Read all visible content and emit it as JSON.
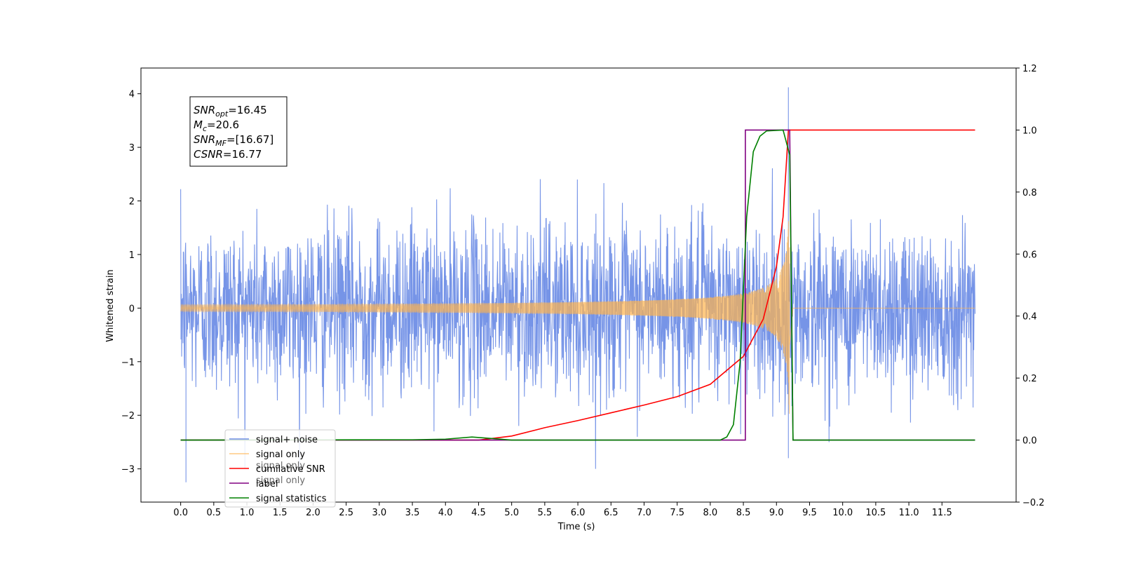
{
  "chart_data": {
    "type": "line",
    "title": "",
    "xlabel": "Time (s)",
    "ylabel": "Whitened strain",
    "y2label": "",
    "xlim": [
      -0.6,
      12.62
    ],
    "ylim": [
      -3.62,
      4.48
    ],
    "y2lim": [
      -0.2,
      1.2
    ],
    "xticks": [
      0.0,
      0.5,
      1.0,
      1.5,
      2.0,
      2.5,
      3.0,
      3.5,
      4.0,
      4.5,
      5.0,
      5.5,
      6.0,
      6.5,
      7.0,
      7.5,
      8.0,
      8.5,
      9.0,
      9.5,
      10.0,
      10.5,
      11.0,
      11.5
    ],
    "xtick_labels": [
      "0.0",
      "0.5",
      "1.0",
      "1.5",
      "2.0",
      "2.5",
      "3.0",
      "3.5",
      "4.0",
      "4.5",
      "5.0",
      "5.5",
      "6.0",
      "6.5",
      "7.0",
      "7.5",
      "8.0",
      "8.5",
      "9.0",
      "9.5",
      "10.0",
      "10.5",
      "11.0",
      "11.5"
    ],
    "yticks": [
      -3,
      -2,
      -1,
      0,
      1,
      2,
      3,
      4
    ],
    "ytick_labels": [
      "−3",
      "−2",
      "−1",
      "0",
      "1",
      "2",
      "3",
      "4"
    ],
    "y2ticks": [
      -0.2,
      0.0,
      0.2,
      0.4,
      0.6,
      0.8,
      1.0,
      1.2
    ],
    "y2tick_labels": [
      "−0.2",
      "0.0",
      "0.2",
      "0.4",
      "0.6",
      "0.8",
      "1.0",
      "1.2"
    ],
    "grid": false,
    "legend_position": "lower-left",
    "series": [
      {
        "name": "signal+ noise",
        "axis": "left",
        "color": "#6f8ee6",
        "kind": "noise",
        "x_range": [
          0,
          12.0
        ],
        "sample_count": 2400,
        "std": 0.8,
        "peak_x": 9.18,
        "peak_y": 4.12,
        "min_y": -3.25
      },
      {
        "name": "signal only",
        "axis": "left",
        "color": "#ffb44d",
        "kind": "chirp",
        "x_range": [
          0,
          12.0
        ],
        "merger_x": 9.2,
        "peak_amplitude": 2.4
      },
      {
        "name": "cumilative SNR",
        "axis": "right",
        "color": "#ff0000",
        "kind": "cumulative",
        "points": [
          [
            0,
            0.0
          ],
          [
            4.5,
            0.0
          ],
          [
            5.0,
            0.013
          ],
          [
            5.5,
            0.04
          ],
          [
            6.0,
            0.063
          ],
          [
            6.5,
            0.088
          ],
          [
            7.0,
            0.113
          ],
          [
            7.5,
            0.14
          ],
          [
            8.0,
            0.18
          ],
          [
            8.5,
            0.27
          ],
          [
            8.8,
            0.39
          ],
          [
            9.0,
            0.56
          ],
          [
            9.1,
            0.72
          ],
          [
            9.18,
            1.0
          ],
          [
            12.0,
            1.0
          ]
        ]
      },
      {
        "name": "label",
        "axis": "right",
        "color": "#800080",
        "kind": "step",
        "points": [
          [
            0,
            0.0
          ],
          [
            8.53,
            0.0
          ],
          [
            8.53,
            1.0
          ],
          [
            9.2,
            1.0
          ],
          [
            9.25,
            0.0
          ],
          [
            12.0,
            0.0
          ]
        ]
      },
      {
        "name": "signal statistics",
        "axis": "right",
        "color": "#008000",
        "kind": "curve",
        "points": [
          [
            0,
            0.0
          ],
          [
            3.5,
            0.001
          ],
          [
            4.0,
            0.003
          ],
          [
            4.4,
            0.01
          ],
          [
            4.7,
            0.005
          ],
          [
            5.0,
            0.0
          ],
          [
            8.15,
            0.0
          ],
          [
            8.25,
            0.01
          ],
          [
            8.35,
            0.05
          ],
          [
            8.45,
            0.25
          ],
          [
            8.55,
            0.72
          ],
          [
            8.65,
            0.93
          ],
          [
            8.75,
            0.98
          ],
          [
            8.85,
            0.997
          ],
          [
            9.1,
            1.0
          ],
          [
            9.2,
            0.92
          ],
          [
            9.23,
            0.4
          ],
          [
            9.25,
            0.0
          ],
          [
            12.0,
            0.0
          ]
        ]
      }
    ],
    "legend_entries": [
      "signal+ noise",
      "signal only",
      "cumilative SNR",
      "label",
      "signal statistics"
    ],
    "hidden_legend_text": [
      "signal only",
      "signal only"
    ],
    "annotation": {
      "lines": [
        {
          "base": "SNR",
          "sub": "opt",
          "rest": "=16.45"
        },
        {
          "base": "M",
          "sub": "c",
          "rest": "=20.6"
        },
        {
          "base": "SNR",
          "sub": "MF",
          "rest": "=[16.67]"
        },
        {
          "base": "CSNR",
          "sub": "",
          "rest": "=16.77"
        }
      ]
    }
  }
}
